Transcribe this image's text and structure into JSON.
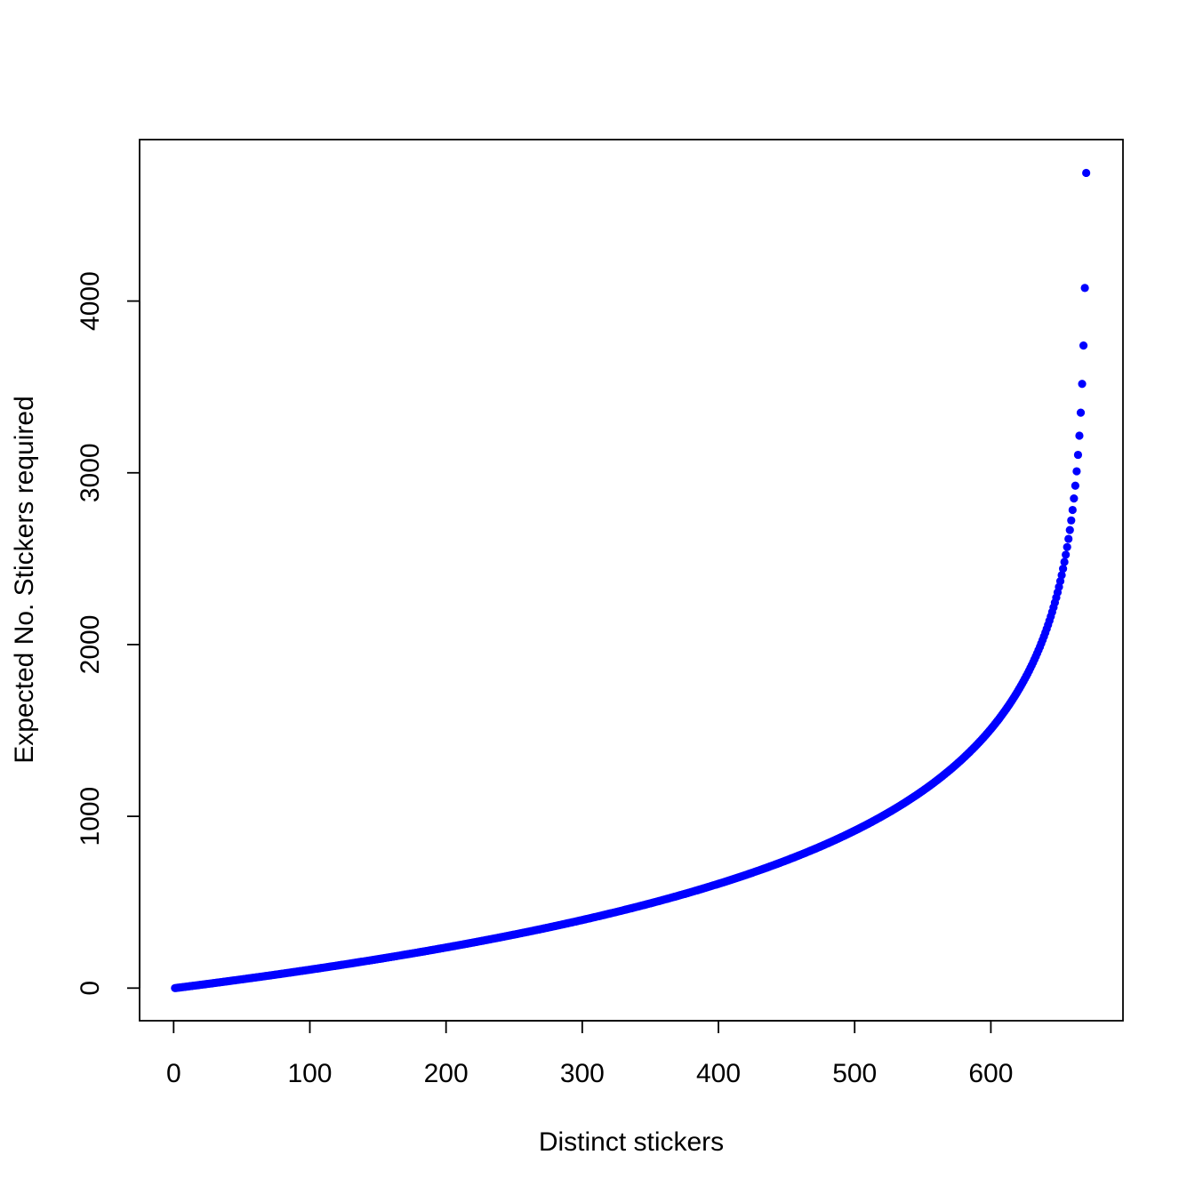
{
  "chart_data": {
    "type": "scatter",
    "title": "",
    "xlabel": "Distinct stickers",
    "ylabel": "Expected No. Stickers required",
    "point_color": "#0000FF",
    "grid": false,
    "legend": "none",
    "x_ticks": [
      0,
      100,
      200,
      300,
      400,
      500,
      600
    ],
    "y_ticks": [
      0,
      1000,
      2000,
      3000,
      4000
    ],
    "xlim": [
      -25,
      697
    ],
    "ylim": [
      -190,
      4940
    ],
    "series": [
      {
        "generator": "coupon-collector",
        "n_total": 670,
        "x_from": 1,
        "x_to": 670
      }
    ]
  }
}
